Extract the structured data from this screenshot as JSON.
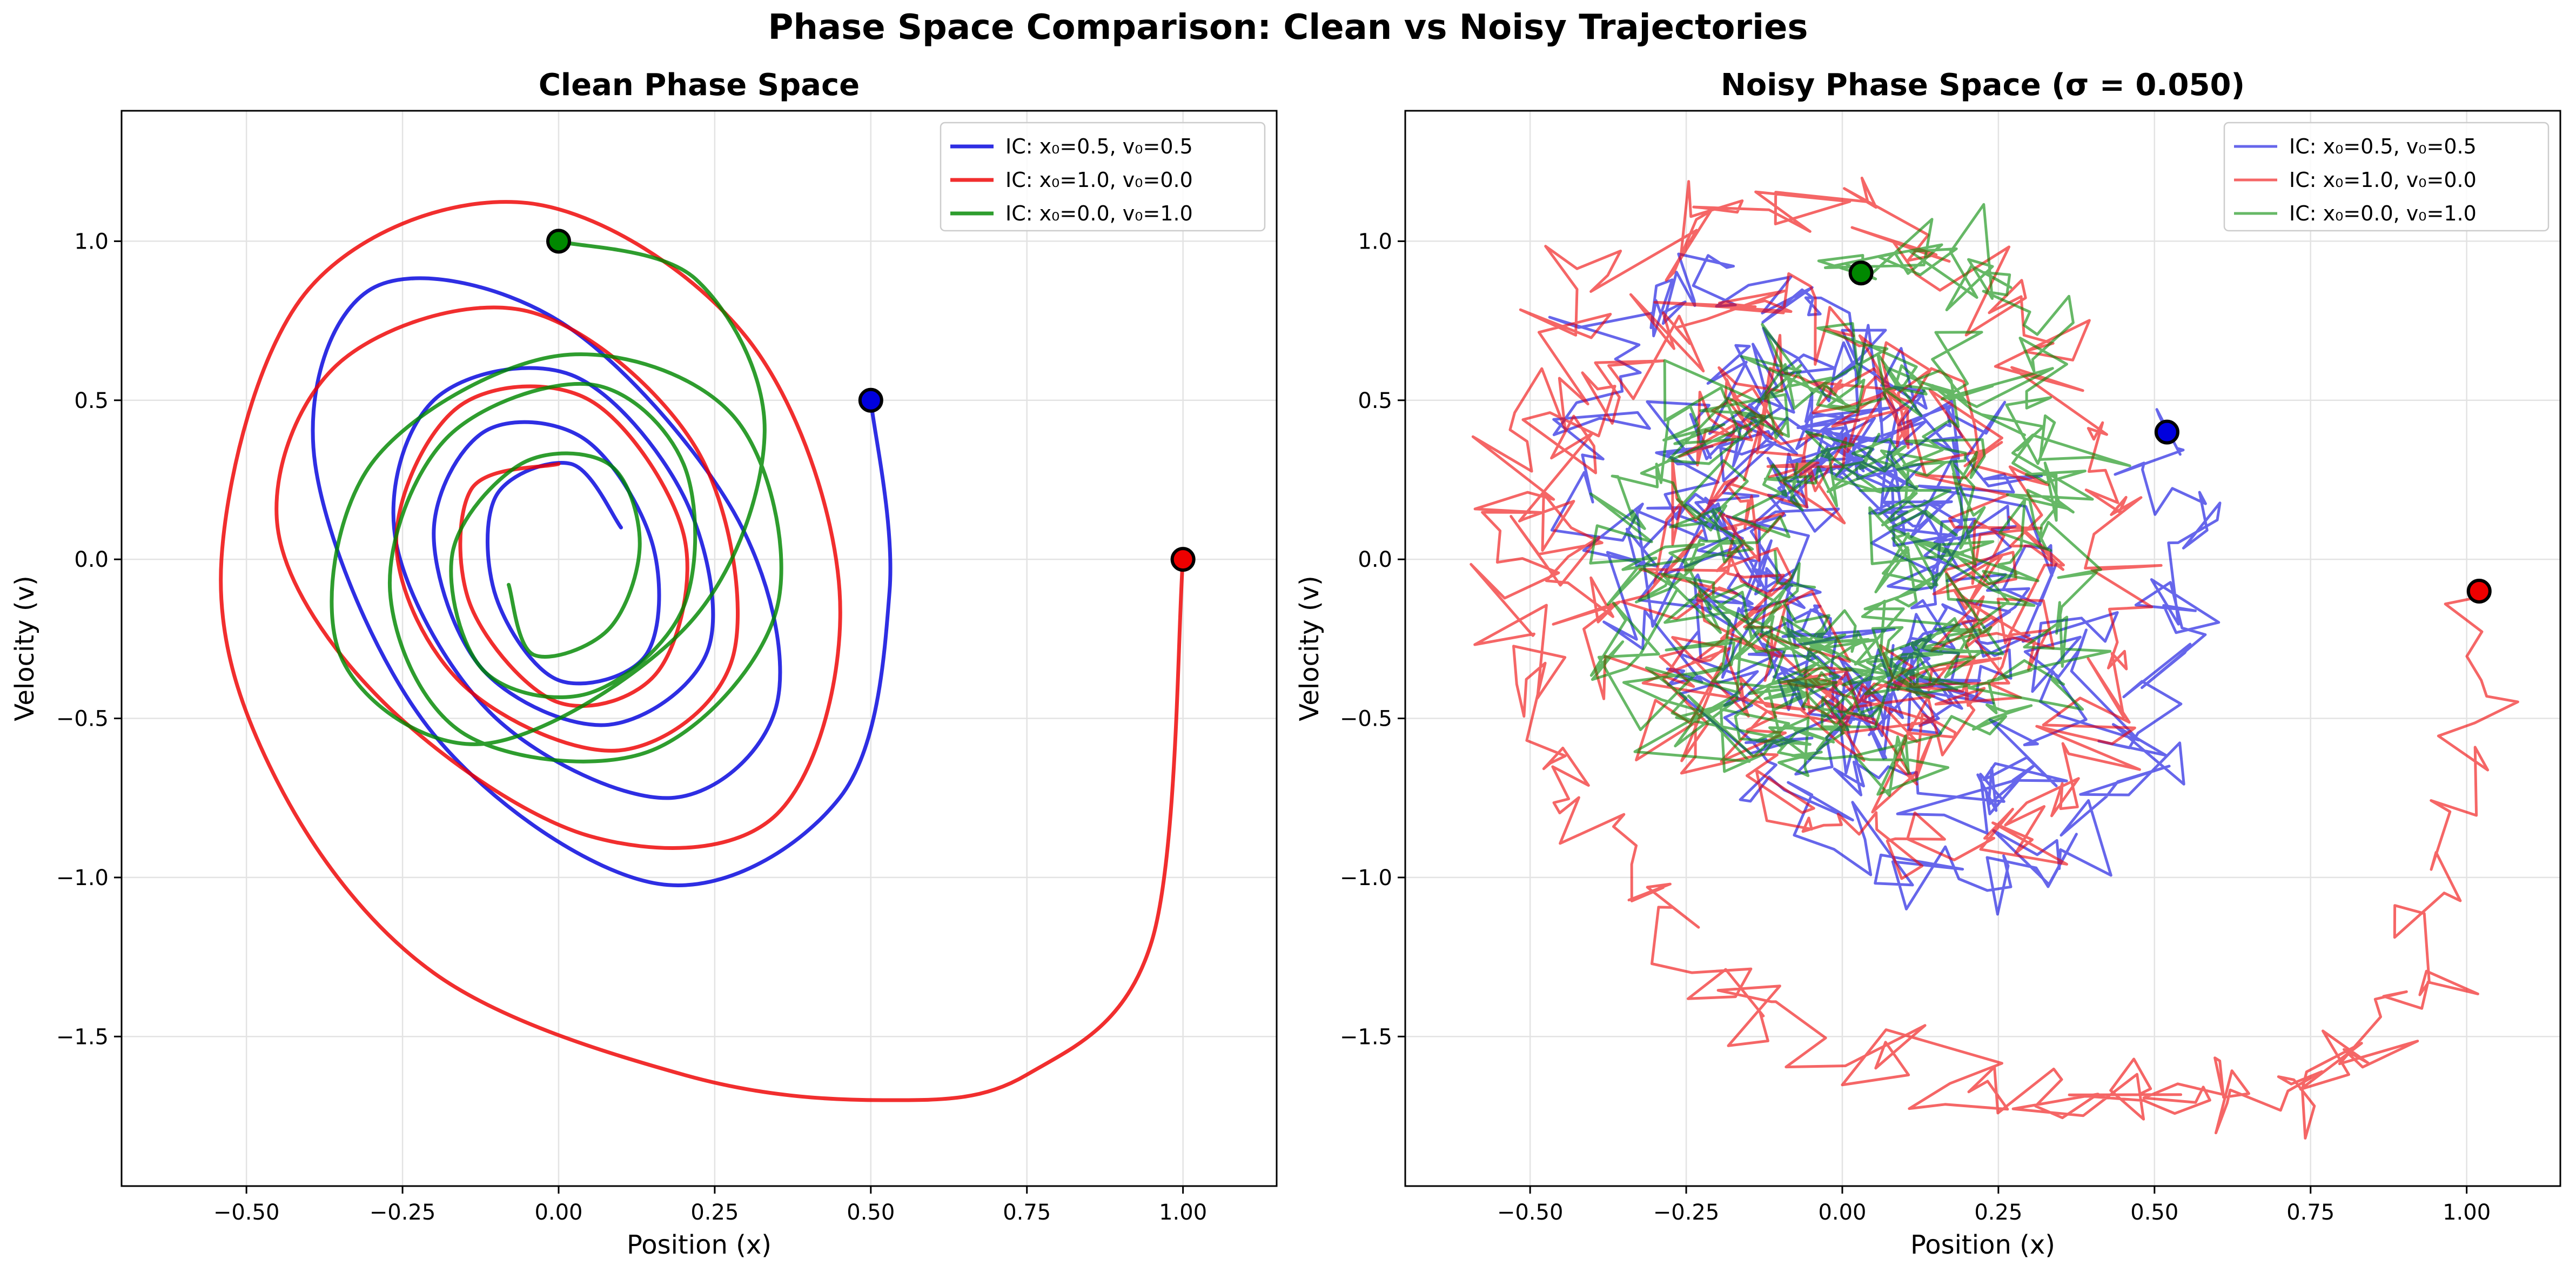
{
  "figure": {
    "suptitle": "Phase Space Comparison: Clean vs Noisy Trajectories"
  },
  "chart_data": [
    {
      "type": "line",
      "variant": "clean",
      "title": "Clean Phase Space",
      "xlabel": "Position (x)",
      "ylabel": "Velocity (v)",
      "xlim": [
        -0.7,
        1.15
      ],
      "ylim": [
        -1.97,
        1.41
      ],
      "xticks": [
        -0.5,
        -0.25,
        0.0,
        0.25,
        0.5,
        0.75,
        1.0
      ],
      "xtick_labels": [
        "−0.50",
        "−0.25",
        "0.00",
        "0.25",
        "0.50",
        "0.75",
        "1.00"
      ],
      "yticks": [
        -1.5,
        -1.0,
        -0.5,
        0.0,
        0.5,
        1.0
      ],
      "ytick_labels": [
        "−1.5",
        "−1.0",
        "−0.5",
        "0.0",
        "0.5",
        "1.0"
      ],
      "grid": true,
      "legend_position": "top-right",
      "series": [
        {
          "name": "IC: x₀=0.5, v₀=0.5",
          "color": "#0000dd",
          "x0": 0.5,
          "v0": 0.5,
          "x": [
            0.5,
            0.53,
            0.45,
            0.16,
            -0.2,
            -0.39,
            -0.3,
            0.0,
            0.28,
            0.35,
            0.18,
            -0.1,
            -0.26,
            -0.2,
            0.02,
            0.2,
            0.24,
            0.08,
            -0.12,
            -0.2,
            -0.12,
            0.04,
            0.15,
            0.14,
            0.0,
            -0.1,
            -0.1,
            0.02,
            0.1
          ],
          "y": [
            0.5,
            -0.1,
            -0.75,
            -1.02,
            -0.55,
            0.3,
            0.85,
            0.75,
            0.15,
            -0.45,
            -0.75,
            -0.5,
            0.05,
            0.5,
            0.58,
            0.2,
            -0.28,
            -0.52,
            -0.35,
            0.08,
            0.4,
            0.38,
            0.05,
            -0.3,
            -0.38,
            -0.12,
            0.2,
            0.3,
            0.1
          ]
        },
        {
          "name": "IC: x₀=1.0, v₀=0.0",
          "color": "#ee0000",
          "x0": 1.0,
          "v0": 0.0,
          "x": [
            1.0,
            0.95,
            0.75,
            0.52,
            0.2,
            -0.2,
            -0.45,
            -0.54,
            -0.4,
            -0.05,
            0.3,
            0.45,
            0.35,
            0.05,
            -0.28,
            -0.45,
            -0.35,
            -0.05,
            0.22,
            0.28,
            0.1,
            -0.15,
            -0.26,
            -0.16,
            0.05,
            0.2,
            0.16,
            0.0,
            -0.14,
            -0.14,
            0.0
          ],
          "y": [
            0.0,
            -1.2,
            -1.62,
            -1.7,
            -1.62,
            -1.3,
            -0.7,
            0.0,
            0.85,
            1.12,
            0.7,
            -0.1,
            -0.8,
            -0.87,
            -0.45,
            0.1,
            0.62,
            0.78,
            0.35,
            -0.3,
            -0.6,
            -0.4,
            0.05,
            0.48,
            0.5,
            0.08,
            -0.35,
            -0.45,
            -0.15,
            0.22,
            0.3
          ]
        },
        {
          "name": "IC: x₀=0.0, v₀=1.0",
          "color": "#008800",
          "x0": 0.0,
          "v0": 1.0,
          "x": [
            0.0,
            0.22,
            0.33,
            0.21,
            -0.12,
            -0.35,
            -0.3,
            0.0,
            0.28,
            0.35,
            0.15,
            -0.15,
            -0.27,
            -0.18,
            0.05,
            0.2,
            0.2,
            0.05,
            -0.12,
            -0.17,
            -0.06,
            0.08,
            0.13,
            0.08,
            -0.04,
            -0.08
          ],
          "y": [
            1.0,
            0.88,
            0.4,
            -0.2,
            -0.58,
            -0.3,
            0.3,
            0.64,
            0.45,
            -0.15,
            -0.6,
            -0.55,
            -0.1,
            0.38,
            0.55,
            0.3,
            -0.15,
            -0.42,
            -0.35,
            0.02,
            0.3,
            0.3,
            0.05,
            -0.22,
            -0.3,
            -0.08
          ]
        }
      ]
    },
    {
      "type": "line",
      "variant": "noisy",
      "title": "Noisy Phase Space (σ = 0.050)",
      "xlabel": "Position (x)",
      "ylabel": "Velocity (v)",
      "xlim": [
        -0.7,
        1.15
      ],
      "ylim": [
        -1.97,
        1.41
      ],
      "xticks": [
        -0.5,
        -0.25,
        0.0,
        0.25,
        0.5,
        0.75,
        1.0
      ],
      "xtick_labels": [
        "−0.50",
        "−0.25",
        "0.00",
        "0.25",
        "0.50",
        "0.75",
        "1.00"
      ],
      "yticks": [
        -1.5,
        -1.0,
        -0.5,
        0.0,
        0.5,
        1.0
      ],
      "ytick_labels": [
        "−1.5",
        "−1.0",
        "−0.5",
        "0.0",
        "0.5",
        "1.0"
      ],
      "grid": true,
      "legend_position": "top-right",
      "noise_sigma": 0.05,
      "series": [
        {
          "name": "IC: x₀=0.5, v₀=0.5",
          "color": "#0000dd",
          "x0": 0.52,
          "v0": 0.4,
          "x": [
            0.52,
            0.55,
            0.45,
            0.16,
            -0.2,
            -0.39,
            -0.3,
            0.0,
            0.28,
            0.35,
            0.18,
            -0.1,
            -0.26,
            -0.2,
            0.02,
            0.2,
            0.24,
            0.08,
            -0.12,
            -0.2,
            -0.12,
            0.04,
            0.15,
            0.14,
            0.0,
            -0.1,
            -0.1,
            0.02,
            0.1
          ],
          "y": [
            0.4,
            -0.1,
            -0.75,
            -1.02,
            -0.55,
            0.3,
            0.85,
            0.75,
            0.15,
            -0.45,
            -0.75,
            -0.5,
            0.05,
            0.5,
            0.58,
            0.2,
            -0.28,
            -0.52,
            -0.35,
            0.08,
            0.4,
            0.38,
            0.05,
            -0.3,
            -0.38,
            -0.12,
            0.2,
            0.3,
            0.1
          ]
        },
        {
          "name": "IC: x₀=1.0, v₀=0.0",
          "color": "#ee0000",
          "x0": 1.02,
          "v0": -0.1,
          "x": [
            1.02,
            0.95,
            0.75,
            0.52,
            0.2,
            -0.2,
            -0.45,
            -0.56,
            -0.4,
            -0.05,
            0.3,
            0.45,
            0.35,
            0.05,
            -0.28,
            -0.45,
            -0.35,
            -0.05,
            0.22,
            0.28,
            0.1,
            -0.15,
            -0.26,
            -0.16,
            0.05,
            0.2,
            0.16,
            0.0,
            -0.14,
            -0.14,
            0.0
          ],
          "y": [
            -0.1,
            -1.2,
            -1.62,
            -1.7,
            -1.62,
            -1.3,
            -0.7,
            0.0,
            0.85,
            1.12,
            0.7,
            -0.1,
            -0.8,
            -0.87,
            -0.45,
            0.1,
            0.62,
            0.78,
            0.35,
            -0.3,
            -0.6,
            -0.4,
            0.05,
            0.48,
            0.5,
            0.08,
            -0.35,
            -0.45,
            -0.15,
            0.22,
            0.3
          ]
        },
        {
          "name": "IC: x₀=0.0, v₀=1.0",
          "color": "#008800",
          "x0": 0.03,
          "v0": 0.9,
          "x": [
            0.03,
            0.22,
            0.33,
            0.21,
            -0.12,
            -0.35,
            -0.3,
            0.0,
            0.28,
            0.35,
            0.15,
            -0.15,
            -0.27,
            -0.18,
            0.05,
            0.2,
            0.2,
            0.05,
            -0.12,
            -0.17,
            -0.06,
            0.08,
            0.13,
            0.08,
            -0.04,
            -0.08
          ],
          "y": [
            0.9,
            0.88,
            0.4,
            -0.2,
            -0.58,
            -0.3,
            0.3,
            0.64,
            0.45,
            -0.15,
            -0.6,
            -0.55,
            -0.1,
            0.38,
            0.55,
            0.3,
            -0.15,
            -0.42,
            -0.35,
            0.02,
            0.3,
            0.3,
            0.05,
            -0.22,
            -0.3,
            -0.08
          ]
        }
      ]
    }
  ]
}
